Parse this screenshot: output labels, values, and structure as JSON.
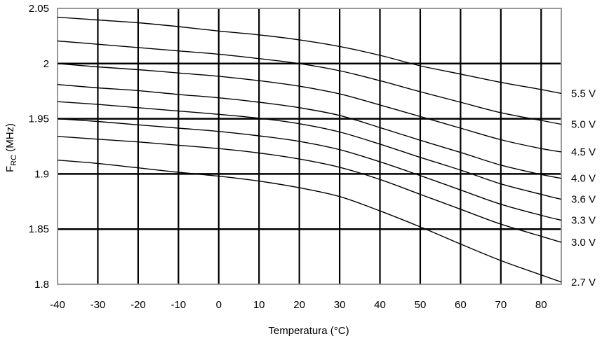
{
  "chart_data": {
    "type": "line",
    "xlabel": "Temperatura (°C)",
    "ylabel_main": "F",
    "ylabel_sub": "RC",
    "ylabel_suffix": " (MHz)",
    "xlim": [
      -40,
      85
    ],
    "ylim": [
      1.8,
      2.05
    ],
    "x_ticks": [
      -40,
      -30,
      -20,
      -10,
      0,
      10,
      20,
      30,
      40,
      50,
      60,
      70,
      80
    ],
    "y_ticks": [
      1.8,
      1.85,
      1.9,
      1.95,
      2,
      2.05
    ],
    "x_tick_labels": [
      "-40",
      "-30",
      "-20",
      "-10",
      "0",
      "10",
      "20",
      "30",
      "40",
      "50",
      "60",
      "70",
      "80"
    ],
    "y_tick_labels": [
      "1.8",
      "1.85",
      "1.9",
      "1.95",
      "2",
      "2.05"
    ],
    "grid": "on",
    "series_label_placement": "right",
    "x": [
      -40,
      -30,
      -20,
      -10,
      0,
      10,
      20,
      30,
      40,
      50,
      60,
      70,
      80,
      85
    ],
    "series": [
      {
        "name": "5.5 V",
        "values": [
          2.042,
          2.0395,
          2.037,
          2.0335,
          2.0295,
          2.026,
          2.0215,
          2.0155,
          2.0075,
          1.998,
          1.9905,
          1.983,
          1.9765,
          1.973
        ]
      },
      {
        "name": "5.0 V",
        "values": [
          2.0205,
          2.0175,
          2.0145,
          2.0115,
          2.0085,
          2.0045,
          2.0,
          1.9935,
          1.9845,
          1.9745,
          1.965,
          1.9555,
          1.9485,
          1.945
        ]
      },
      {
        "name": "4.5 V",
        "values": [
          2.0,
          1.997,
          1.9945,
          1.9915,
          1.9885,
          1.9845,
          1.9795,
          1.9725,
          1.9625,
          1.952,
          1.9415,
          1.931,
          1.923,
          1.92
        ]
      },
      {
        "name": "4.0 V",
        "values": [
          1.981,
          1.978,
          1.9755,
          1.972,
          1.969,
          1.965,
          1.96,
          1.953,
          1.942,
          1.9305,
          1.9195,
          1.908,
          1.8995,
          1.896
        ]
      },
      {
        "name": "3.6 V",
        "values": [
          1.9655,
          1.963,
          1.96,
          1.957,
          1.954,
          1.9505,
          1.9455,
          1.938,
          1.927,
          1.915,
          1.9035,
          1.891,
          1.8815,
          1.877
        ]
      },
      {
        "name": "3.3 V",
        "values": [
          1.95,
          1.9475,
          1.9445,
          1.9415,
          1.9385,
          1.9345,
          1.9295,
          1.922,
          1.911,
          1.8985,
          1.8855,
          1.8725,
          1.8625,
          1.858
        ]
      },
      {
        "name": "3.0 V",
        "values": [
          1.934,
          1.9315,
          1.929,
          1.926,
          1.923,
          1.919,
          1.9135,
          1.906,
          1.895,
          1.8815,
          1.868,
          1.8545,
          1.8435,
          1.838
        ]
      },
      {
        "name": "2.7 V",
        "values": [
          1.9125,
          1.9095,
          1.9055,
          1.9015,
          1.898,
          1.8935,
          1.8875,
          1.8795,
          1.8665,
          1.852,
          1.8365,
          1.8215,
          1.8085,
          1.802
        ]
      }
    ]
  }
}
